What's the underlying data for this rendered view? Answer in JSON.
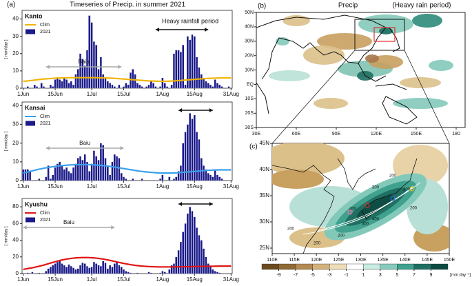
{
  "title": "Timeseries of Precip. in summer 2021",
  "panel_label": "(a)",
  "chart_data": [
    {
      "type": "bar",
      "region": "Kanto",
      "region_color": "#000000",
      "y_label": "[ mm/day ]",
      "heavy_label": "Heavy rainfall period",
      "baiu_label": "Baiu",
      "categories": [
        "1Jun",
        null,
        null,
        null,
        null,
        null,
        null,
        null,
        null,
        null,
        null,
        null,
        null,
        null,
        "15Jun",
        null,
        null,
        null,
        null,
        null,
        null,
        null,
        null,
        null,
        null,
        null,
        null,
        null,
        null,
        null,
        "1Jul",
        null,
        null,
        null,
        null,
        null,
        null,
        null,
        null,
        null,
        null,
        null,
        null,
        null,
        "15Jul",
        null,
        null,
        null,
        null,
        null,
        null,
        null,
        null,
        null,
        null,
        null,
        null,
        null,
        null,
        null,
        null,
        "1Aug",
        null,
        null,
        null,
        null,
        null,
        null,
        null,
        null,
        null,
        null,
        null,
        null,
        null,
        "15Aug",
        null,
        null,
        null,
        null,
        null,
        null,
        null,
        null,
        null,
        null,
        null,
        null,
        null,
        null,
        null,
        "31Aug"
      ],
      "series": [
        {
          "name": "Clim",
          "type": "line",
          "color": "#f0b400",
          "values": [
            4.0,
            4.1,
            4.2,
            4.4,
            4.5,
            4.7,
            4.9,
            5.0,
            5.2,
            5.3,
            5.4,
            5.5,
            5.6,
            5.7,
            5.8,
            5.9,
            5.9,
            6.0,
            6.0,
            6.0,
            6.1,
            6.1,
            6.1,
            6.1,
            6.1,
            6.1,
            6.1,
            6.1,
            6.1,
            6.1,
            6.1,
            6.1,
            6.1,
            6.0,
            6.0,
            6.0,
            5.9,
            5.9,
            5.8,
            5.8,
            5.7,
            5.6,
            5.5,
            5.4,
            5.3,
            5.2,
            5.1,
            5.0,
            4.9,
            4.8,
            4.7,
            4.6,
            4.5,
            4.4,
            4.3,
            4.2,
            4.2,
            4.1,
            4.1,
            4.0,
            4.0,
            4.0,
            4.0,
            4.0,
            4.1,
            4.1,
            4.2,
            4.3,
            4.4,
            4.5,
            4.6,
            4.7,
            4.8,
            4.9,
            5.0,
            5.1,
            5.2,
            5.3,
            5.4,
            5.5,
            5.6,
            5.7,
            5.7,
            5.8,
            5.8,
            5.9,
            5.9,
            6.0,
            6.0,
            6.0,
            6.0,
            6.0
          ]
        },
        {
          "name": "2021",
          "type": "bar",
          "color": "#1b1b8a",
          "values": [
            0,
            0,
            1,
            0,
            0,
            2,
            1,
            0,
            3,
            1,
            0,
            0,
            2,
            1,
            5,
            6,
            5,
            4,
            6,
            5,
            3,
            4,
            2,
            8,
            11,
            20,
            17,
            13,
            22,
            42,
            38,
            27,
            25,
            11,
            18,
            8,
            6,
            4,
            3,
            2,
            1,
            0,
            2,
            0,
            1,
            3,
            2,
            9,
            11,
            8,
            3,
            2,
            1,
            0,
            1,
            2,
            4,
            3,
            1,
            0,
            1,
            6,
            3,
            1,
            0,
            2,
            20,
            22,
            22,
            21,
            25,
            2,
            30,
            28,
            31,
            30,
            18,
            12,
            8,
            6,
            4,
            3,
            2,
            1,
            5,
            3,
            2,
            1,
            0,
            0,
            1,
            0
          ]
        }
      ],
      "ylim": [
        0,
        45
      ],
      "yticks": [
        0,
        10,
        20,
        30,
        40
      ]
    },
    {
      "type": "bar",
      "region": "Kansai",
      "region_color": "#2f96e0",
      "y_label": "[ mm/day ]",
      "baiu_label": "Baiu",
      "categories": [
        "1Jun",
        null,
        null,
        null,
        null,
        null,
        null,
        null,
        null,
        null,
        null,
        null,
        null,
        null,
        "15Jun",
        null,
        null,
        null,
        null,
        null,
        null,
        null,
        null,
        null,
        null,
        null,
        null,
        null,
        null,
        null,
        "1Jul",
        null,
        null,
        null,
        null,
        null,
        null,
        null,
        null,
        null,
        null,
        null,
        null,
        null,
        "15Jul",
        null,
        null,
        null,
        null,
        null,
        null,
        null,
        null,
        null,
        null,
        null,
        null,
        null,
        null,
        null,
        null,
        "1Aug",
        null,
        null,
        null,
        null,
        null,
        null,
        null,
        null,
        null,
        null,
        null,
        null,
        null,
        "15Aug",
        null,
        null,
        null,
        null,
        null,
        null,
        null,
        null,
        null,
        null,
        null,
        null,
        null,
        null,
        null,
        "31Aug"
      ],
      "series": [
        {
          "name": "Clim",
          "type": "line",
          "color": "#3aa0ec",
          "values": [
            4.0,
            4.3,
            4.6,
            4.9,
            5.2,
            5.5,
            5.8,
            6.1,
            6.3,
            6.6,
            6.8,
            7.0,
            7.2,
            7.4,
            7.6,
            7.8,
            7.9,
            8.0,
            8.1,
            8.2,
            8.3,
            8.4,
            8.4,
            8.5,
            8.5,
            8.5,
            8.5,
            8.5,
            8.5,
            8.5,
            8.4,
            8.4,
            8.3,
            8.2,
            8.1,
            8.0,
            7.9,
            7.7,
            7.6,
            7.4,
            7.2,
            7.0,
            6.8,
            6.6,
            6.4,
            6.2,
            6.0,
            5.8,
            5.6,
            5.4,
            5.2,
            5.0,
            4.9,
            4.7,
            4.6,
            4.5,
            4.4,
            4.3,
            4.2,
            4.1,
            4.1,
            4.0,
            4.0,
            4.0,
            4.0,
            4.0,
            4.1,
            4.1,
            4.2,
            4.3,
            4.4,
            4.5,
            4.6,
            4.7,
            4.8,
            4.9,
            5.0,
            5.1,
            5.2,
            5.3,
            5.4,
            5.5,
            5.5,
            5.6,
            5.6,
            5.7,
            5.7,
            5.7,
            5.7,
            5.7,
            5.7,
            5.7
          ]
        },
        {
          "name": "2021",
          "type": "bar",
          "color": "#1b1b8a",
          "values": [
            6,
            6,
            6,
            5,
            0,
            0,
            0,
            1,
            0,
            0,
            2,
            8,
            1,
            3,
            7,
            9,
            10,
            8,
            6,
            7,
            5,
            4,
            7,
            9,
            12,
            13,
            11,
            14,
            10,
            5,
            9,
            16,
            13,
            11,
            20,
            19,
            12,
            8,
            3,
            10,
            14,
            13,
            12,
            4,
            2,
            1,
            0,
            0,
            1,
            0,
            0,
            0,
            1,
            0,
            0,
            0,
            0,
            0,
            0,
            0,
            1,
            3,
            0,
            0,
            2,
            0,
            1,
            2,
            5,
            8,
            20,
            26,
            30,
            36,
            33,
            35,
            26,
            22,
            12,
            8,
            6,
            4,
            3,
            2,
            6,
            3,
            2,
            1,
            0,
            0,
            0,
            0
          ]
        }
      ],
      "ylim": [
        0,
        42
      ],
      "yticks": [
        0,
        10,
        20,
        30,
        40
      ]
    },
    {
      "type": "bar",
      "region": "Kyushu",
      "region_color": "#e01414",
      "y_label": "[ mm/day ]",
      "baiu_label": "Baiu",
      "categories": [
        "1Jun",
        null,
        null,
        null,
        null,
        null,
        null,
        null,
        null,
        null,
        null,
        null,
        null,
        null,
        "15Jun",
        null,
        null,
        null,
        null,
        null,
        null,
        null,
        null,
        null,
        null,
        null,
        null,
        null,
        null,
        null,
        "1Jul",
        null,
        null,
        null,
        null,
        null,
        null,
        null,
        null,
        null,
        null,
        null,
        null,
        null,
        "15Jul",
        null,
        null,
        null,
        null,
        null,
        null,
        null,
        null,
        null,
        null,
        null,
        null,
        null,
        null,
        null,
        null,
        "1Aug",
        null,
        null,
        null,
        null,
        null,
        null,
        null,
        null,
        null,
        null,
        null,
        null,
        null,
        "15Aug",
        null,
        null,
        null,
        null,
        null,
        null,
        null,
        null,
        null,
        null,
        null,
        null,
        null,
        null,
        null,
        "31Aug"
      ],
      "series": [
        {
          "name": "Clim",
          "type": "line",
          "color": "#e01414",
          "values": [
            5,
            5.5,
            6,
            6.5,
            7,
            7.6,
            8.2,
            8.8,
            9.5,
            10.2,
            11,
            11.8,
            12.6,
            13.4,
            14.2,
            15,
            15.7,
            16.3,
            16.9,
            17.4,
            17.8,
            18.2,
            18.5,
            18.8,
            19,
            19.1,
            19.2,
            19.2,
            19.2,
            19.1,
            19,
            18.8,
            18.5,
            18.2,
            17.8,
            17.4,
            16.9,
            16.4,
            15.8,
            15.2,
            14.6,
            14,
            13.4,
            12.8,
            12.2,
            11.7,
            11.2,
            10.7,
            10.3,
            9.9,
            9.6,
            9.3,
            9,
            8.8,
            8.6,
            8.4,
            8.3,
            8.2,
            8.1,
            8.0,
            8,
            8,
            8,
            8,
            8,
            8,
            8,
            8.1,
            8.1,
            8.1,
            8.2,
            8.2,
            8.3,
            8.3,
            8.4,
            8.4,
            8.5,
            8.5,
            8.6,
            8.6,
            8.7,
            8.7,
            8.8,
            8.8,
            8.9,
            8.9,
            9,
            9,
            9,
            9,
            9,
            9
          ]
        },
        {
          "name": "2021",
          "type": "bar",
          "color": "#1b1b8a",
          "values": [
            0,
            0,
            1,
            0,
            2,
            0,
            0,
            1,
            0,
            0,
            3,
            6,
            8,
            10,
            12,
            14,
            15,
            12,
            10,
            8,
            11,
            9,
            7,
            5,
            6,
            10,
            13,
            12,
            9,
            7,
            8,
            14,
            12,
            10,
            9,
            15,
            13,
            6,
            10,
            8,
            12,
            14,
            10,
            8,
            5,
            3,
            2,
            1,
            0,
            0,
            1,
            0,
            0,
            0,
            0,
            2,
            1,
            0,
            0,
            0,
            1,
            3,
            2,
            0,
            5,
            10,
            12,
            20,
            28,
            38,
            50,
            60,
            72,
            80,
            75,
            68,
            55,
            46,
            40,
            30,
            20,
            12,
            8,
            5,
            3,
            2,
            1,
            0,
            0,
            0,
            0,
            0
          ]
        }
      ],
      "ylim": [
        0,
        90
      ],
      "yticks": [
        0,
        20,
        40,
        60,
        80
      ]
    }
  ],
  "maps": {
    "b": {
      "label": "(b)",
      "title": "Precip",
      "subtitle": "(Heavy rain period)",
      "lat_labels": [
        "50N",
        "40N",
        "30N",
        "20N",
        "10N",
        "EQ",
        "10S",
        "20S",
        "30S"
      ],
      "lon_labels": [
        "30E",
        "60E",
        "90E",
        "120E",
        "150E",
        "180"
      ]
    },
    "c": {
      "label": "(c)",
      "lat_labels": [
        "45N",
        "40N",
        "35N",
        "30N",
        "25N"
      ],
      "lon_labels": [
        "110E",
        "115E",
        "120E",
        "125E",
        "130E",
        "135E",
        "140E",
        "145E",
        "150E"
      ],
      "contour_labels": [
        "200",
        "200",
        "300",
        "300",
        "400",
        "400",
        "300",
        "200",
        "200",
        "200"
      ],
      "colorbar_ticks": [
        -9,
        -7,
        -5,
        -3,
        -1,
        1,
        3,
        5,
        7,
        9
      ],
      "colorbar_unit": "[mm day⁻¹]"
    }
  }
}
